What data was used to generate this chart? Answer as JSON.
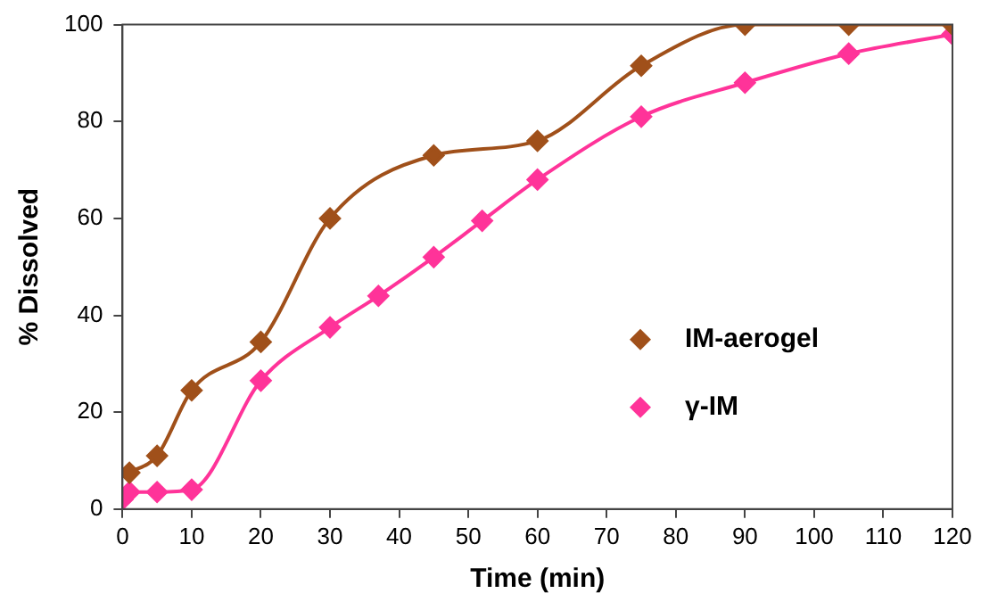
{
  "chart_data": {
    "type": "line",
    "xlabel": "Time (min)",
    "ylabel": "% Dissolved",
    "xlim": [
      0,
      120
    ],
    "xticks": [
      0,
      10,
      20,
      30,
      40,
      50,
      60,
      70,
      80,
      90,
      100,
      110,
      120
    ],
    "ylim": [
      0,
      100
    ],
    "yticks": [
      0,
      20,
      40,
      60,
      80,
      100
    ],
    "grid": false,
    "legend": "bottom right",
    "marker": "diamond",
    "line_style": "solid",
    "series": [
      {
        "name": "IM-aerogel",
        "color": "#a0501a",
        "x": [
          1,
          5,
          10,
          20,
          30,
          45,
          60,
          75,
          90,
          105,
          120
        ],
        "values": [
          7.5,
          11,
          24.5,
          34.5,
          60,
          73,
          76,
          91.5,
          100,
          100,
          100
        ]
      },
      {
        "name": "γ-IM",
        "color": "#ff3399",
        "x": [
          0,
          1,
          5,
          10,
          20,
          30,
          37,
          45,
          52,
          60,
          75,
          90,
          105,
          120
        ],
        "values": [
          2,
          3.5,
          3.5,
          4,
          26.5,
          37.5,
          44,
          52,
          59.5,
          68,
          81,
          88,
          94,
          98
        ]
      }
    ]
  }
}
